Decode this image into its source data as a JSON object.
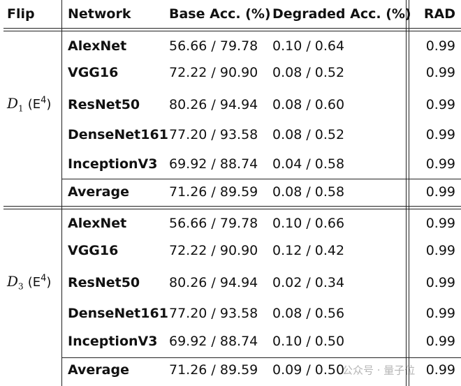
{
  "header": [
    "Flip",
    "Network",
    "Base Acc. (%)",
    "Degraded Acc. (%)",
    "RAD"
  ],
  "groups": [
    {
      "label": {
        "main": "D",
        "sub": "1",
        "open": "(E",
        "sup": "4",
        "close": ")"
      },
      "rows": [
        [
          "AlexNet",
          "56.66 / 79.78",
          "0.10 / 0.64",
          "0.99"
        ],
        [
          "VGG16",
          "72.22 / 90.90",
          "0.08 / 0.52",
          "0.99"
        ],
        [
          "ResNet50",
          "80.26 / 94.94",
          "0.08 / 0.60",
          "0.99"
        ],
        [
          "DenseNet161",
          "77.20 / 93.58",
          "0.08 / 0.52",
          "0.99"
        ],
        [
          "InceptionV3",
          "69.92 / 88.74",
          "0.04 / 0.58",
          "0.99"
        ]
      ],
      "average": [
        "Average",
        "71.26 / 89.59",
        "0.08 / 0.58",
        "0.99"
      ]
    },
    {
      "label": {
        "main": "D",
        "sub": "3",
        "open": "(E",
        "sup": "4",
        "close": ")"
      },
      "rows": [
        [
          "AlexNet",
          "56.66 / 79.78",
          "0.10 / 0.66",
          "0.99"
        ],
        [
          "VGG16",
          "72.22 / 90.90",
          "0.12 / 0.42",
          "0.99"
        ],
        [
          "ResNet50",
          "80.26 / 94.94",
          "0.02 / 0.34",
          "0.99"
        ],
        [
          "DenseNet161",
          "77.20 / 93.58",
          "0.08 / 0.56",
          "0.99"
        ],
        [
          "InceptionV3",
          "69.92 / 88.74",
          "0.10 / 0.50",
          "0.99"
        ]
      ],
      "average": [
        "Average",
        "71.26 / 89.59",
        "0.09 / 0.50",
        "0.99"
      ]
    }
  ],
  "watermark": "公众号 · 量子位"
}
